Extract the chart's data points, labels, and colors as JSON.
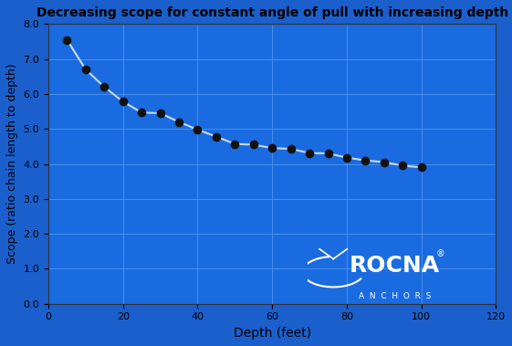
{
  "title": "Decreasing scope for constant angle of pull with increasing depth",
  "xlabel": "Depth (feet)",
  "ylabel": "Scope (ratio chain length to depth)",
  "x_data": [
    5,
    10,
    15,
    20,
    25,
    30,
    35,
    40,
    45,
    50,
    55,
    60,
    65,
    70,
    75,
    80,
    85,
    90,
    95,
    100
  ],
  "y_data": [
    7.55,
    6.7,
    6.2,
    5.78,
    5.47,
    5.45,
    5.2,
    4.98,
    4.78,
    4.57,
    4.55,
    4.45,
    4.43,
    4.31,
    4.3,
    4.18,
    4.1,
    4.05,
    3.95,
    3.9
  ],
  "xlim": [
    0,
    120
  ],
  "ylim": [
    0.0,
    8.0
  ],
  "xticks": [
    0,
    20,
    40,
    60,
    80,
    100,
    120
  ],
  "yticks": [
    0.0,
    1.0,
    2.0,
    3.0,
    4.0,
    5.0,
    6.0,
    7.0,
    8.0
  ],
  "fig_bg_color": "#1a5fcc",
  "plot_bg_color": "#1a6be0",
  "line_color": "#c8d8f0",
  "marker_color": "#111111",
  "grid_color": "#5599ee",
  "title_color": "#000000",
  "axis_label_color": "#000000",
  "tick_color": "#000000",
  "logo_text": "ROCNA",
  "logo_sub": "ANCHORS",
  "logo_box_color": "#001155",
  "figsize": [
    5.61,
    3.79
  ],
  "dpi": 100
}
